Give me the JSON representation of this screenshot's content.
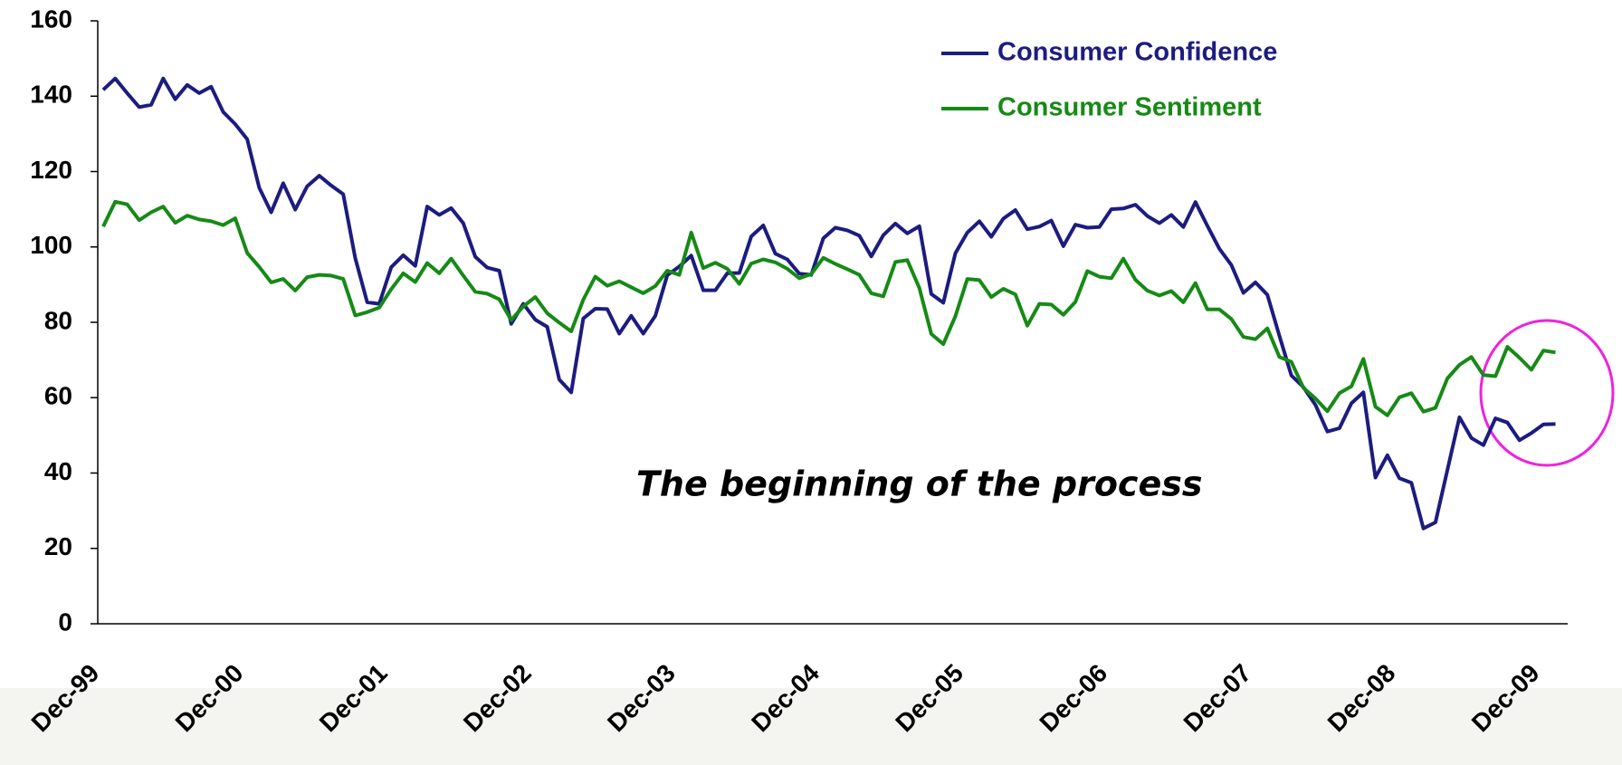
{
  "chart_data": {
    "type": "line",
    "annotation": "The beginning of the process",
    "categories": [
      "Dec-99",
      null,
      null,
      null,
      null,
      null,
      null,
      null,
      null,
      null,
      null,
      null,
      "Dec-00",
      null,
      null,
      null,
      null,
      null,
      null,
      null,
      null,
      null,
      null,
      null,
      "Dec-01",
      null,
      null,
      null,
      null,
      null,
      null,
      null,
      null,
      null,
      null,
      null,
      "Dec-02",
      null,
      null,
      null,
      null,
      null,
      null,
      null,
      null,
      null,
      null,
      null,
      "Dec-03",
      null,
      null,
      null,
      null,
      null,
      null,
      null,
      null,
      null,
      null,
      null,
      "Dec-04",
      null,
      null,
      null,
      null,
      null,
      null,
      null,
      null,
      null,
      null,
      null,
      "Dec-05",
      null,
      null,
      null,
      null,
      null,
      null,
      null,
      null,
      null,
      null,
      null,
      "Dec-06",
      null,
      null,
      null,
      null,
      null,
      null,
      null,
      null,
      null,
      null,
      null,
      "Dec-07",
      null,
      null,
      null,
      null,
      null,
      null,
      null,
      null,
      null,
      null,
      null,
      "Dec-08",
      null,
      null,
      null,
      null,
      null,
      null,
      null,
      null,
      null,
      null,
      null,
      "Dec-09",
      null
    ],
    "series": [
      {
        "name": "Consumer Confidence",
        "color": "#1c1c80",
        "values": [
          141.7,
          144.7,
          140.8,
          137.1,
          137.7,
          144.7,
          139.2,
          143.0,
          140.8,
          142.5,
          135.8,
          132.6,
          128.6,
          115.7,
          109.2,
          116.9,
          109.9,
          116.1,
          118.9,
          116.3,
          114.0,
          97.0,
          85.3,
          84.9,
          94.6,
          97.8,
          95.0,
          110.7,
          108.5,
          110.3,
          106.3,
          97.4,
          94.5,
          93.7,
          79.6,
          84.9,
          80.7,
          78.8,
          64.8,
          61.4,
          81.0,
          83.6,
          83.5,
          77.0,
          81.7,
          77.0,
          81.7,
          92.5,
          94.8,
          97.7,
          88.5,
          88.5,
          93.0,
          93.1,
          102.8,
          105.7,
          98.2,
          96.7,
          92.9,
          92.6,
          102.3,
          105.1,
          104.4,
          103.0,
          97.5,
          103.1,
          106.2,
          103.6,
          105.5,
          87.5,
          85.2,
          98.3,
          103.8,
          106.8,
          102.7,
          107.5,
          109.8,
          104.7,
          105.4,
          107.0,
          100.2,
          105.9,
          105.1,
          105.3,
          110.0,
          110.2,
          111.2,
          108.2,
          106.3,
          108.5,
          105.3,
          111.9,
          105.6,
          99.5,
          95.2,
          87.8,
          90.6,
          87.3,
          76.4,
          65.9,
          62.8,
          58.1,
          51.0,
          51.9,
          58.5,
          61.4,
          38.8,
          44.7,
          38.6,
          37.4,
          25.3,
          26.9,
          40.8,
          54.8,
          49.3,
          47.4,
          54.5,
          53.4,
          48.7,
          50.6,
          52.9,
          53
        ]
      },
      {
        "name": "Consumer Sentiment",
        "color": "#168a16",
        "values": [
          105.4,
          112.0,
          111.3,
          107.1,
          109.2,
          110.7,
          106.4,
          108.3,
          107.3,
          106.8,
          105.8,
          107.6,
          98.4,
          94.7,
          90.6,
          91.5,
          88.4,
          92.0,
          92.6,
          92.4,
          91.5,
          81.8,
          82.7,
          83.9,
          88.8,
          93.0,
          90.7,
          95.7,
          93.0,
          96.9,
          92.4,
          88.1,
          87.6,
          86.1,
          80.6,
          84.2,
          86.7,
          82.4,
          79.9,
          77.6,
          86.0,
          92.1,
          89.7,
          90.9,
          89.3,
          87.7,
          89.6,
          93.7,
          92.6,
          103.8,
          94.4,
          95.8,
          94.2,
          90.2,
          95.6,
          96.7,
          95.9,
          94.2,
          91.7,
          92.8,
          97.1,
          95.5,
          94.1,
          92.6,
          87.7,
          86.9,
          96.0,
          96.5,
          89.1,
          76.9,
          74.2,
          81.6,
          91.5,
          91.2,
          86.7,
          88.9,
          87.4,
          79.1,
          84.9,
          84.7,
          82.0,
          85.4,
          93.6,
          92.1,
          91.7,
          96.9,
          91.3,
          88.4,
          87.1,
          88.3,
          85.3,
          90.4,
          83.4,
          83.4,
          80.9,
          76.1,
          75.5,
          78.4,
          70.8,
          69.5,
          62.6,
          59.8,
          56.4,
          61.2,
          63.0,
          70.3,
          57.6,
          55.3,
          60.1,
          61.2,
          56.3,
          57.3,
          65.1,
          68.7,
          70.8,
          66.0,
          65.7,
          73.5,
          70.6,
          67.4,
          72.5,
          72
        ]
      }
    ],
    "ylim": [
      0,
      160
    ],
    "yticks": [
      0,
      20,
      40,
      60,
      80,
      100,
      120,
      140,
      160
    ],
    "grid": false,
    "legend": "top-right"
  }
}
